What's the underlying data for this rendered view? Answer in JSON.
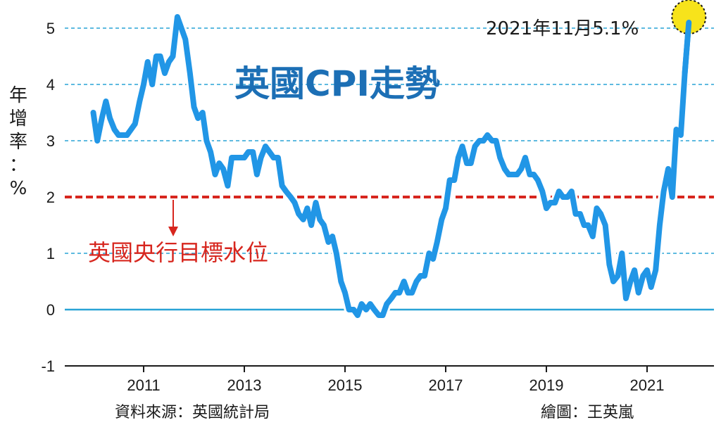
{
  "chart_data": {
    "type": "line",
    "title": "英國CPI走勢",
    "ylabel": [
      "年",
      "增",
      "率",
      "：",
      "%"
    ],
    "xlabel": "",
    "ylim": [
      -1,
      5
    ],
    "yticks": [
      "-1",
      "0",
      "1",
      "2",
      "3",
      "4",
      "5"
    ],
    "xticks": [
      {
        "label": "2011",
        "x": 2011
      },
      {
        "label": "2013",
        "x": 2013
      },
      {
        "label": "2015",
        "x": 2015
      },
      {
        "label": "2017",
        "x": 2017
      },
      {
        "label": "2019",
        "x": 2019
      },
      {
        "label": "2021",
        "x": 2021
      }
    ],
    "grid": "horizontal dashed",
    "series": [
      {
        "name": "",
        "color": "#2196e6",
        "points": [
          [
            2010.0,
            3.5
          ],
          [
            2010.08,
            3.0
          ],
          [
            2010.17,
            3.4
          ],
          [
            2010.25,
            3.7
          ],
          [
            2010.33,
            3.4
          ],
          [
            2010.42,
            3.2
          ],
          [
            2010.5,
            3.1
          ],
          [
            2010.58,
            3.1
          ],
          [
            2010.67,
            3.1
          ],
          [
            2010.75,
            3.2
          ],
          [
            2010.83,
            3.3
          ],
          [
            2010.92,
            3.7
          ],
          [
            2011.0,
            4.0
          ],
          [
            2011.08,
            4.4
          ],
          [
            2011.17,
            4.0
          ],
          [
            2011.25,
            4.5
          ],
          [
            2011.33,
            4.5
          ],
          [
            2011.42,
            4.2
          ],
          [
            2011.5,
            4.4
          ],
          [
            2011.58,
            4.5
          ],
          [
            2011.67,
            5.2
          ],
          [
            2011.75,
            5.0
          ],
          [
            2011.83,
            4.8
          ],
          [
            2011.92,
            4.2
          ],
          [
            2012.0,
            3.6
          ],
          [
            2012.08,
            3.4
          ],
          [
            2012.17,
            3.5
          ],
          [
            2012.25,
            3.0
          ],
          [
            2012.33,
            2.8
          ],
          [
            2012.42,
            2.4
          ],
          [
            2012.5,
            2.6
          ],
          [
            2012.58,
            2.5
          ],
          [
            2012.67,
            2.2
          ],
          [
            2012.75,
            2.7
          ],
          [
            2012.83,
            2.7
          ],
          [
            2012.92,
            2.7
          ],
          [
            2013.0,
            2.7
          ],
          [
            2013.08,
            2.8
          ],
          [
            2013.17,
            2.8
          ],
          [
            2013.25,
            2.4
          ],
          [
            2013.33,
            2.7
          ],
          [
            2013.42,
            2.9
          ],
          [
            2013.5,
            2.8
          ],
          [
            2013.58,
            2.7
          ],
          [
            2013.67,
            2.7
          ],
          [
            2013.75,
            2.2
          ],
          [
            2013.83,
            2.1
          ],
          [
            2013.92,
            2.0
          ],
          [
            2014.0,
            1.9
          ],
          [
            2014.08,
            1.7
          ],
          [
            2014.17,
            1.6
          ],
          [
            2014.25,
            1.8
          ],
          [
            2014.33,
            1.5
          ],
          [
            2014.42,
            1.9
          ],
          [
            2014.5,
            1.6
          ],
          [
            2014.58,
            1.5
          ],
          [
            2014.67,
            1.2
          ],
          [
            2014.75,
            1.3
          ],
          [
            2014.83,
            1.0
          ],
          [
            2014.92,
            0.5
          ],
          [
            2015.0,
            0.3
          ],
          [
            2015.08,
            0.0
          ],
          [
            2015.17,
            0.0
          ],
          [
            2015.25,
            -0.1
          ],
          [
            2015.33,
            0.1
          ],
          [
            2015.42,
            0.0
          ],
          [
            2015.5,
            0.1
          ],
          [
            2015.58,
            0.0
          ],
          [
            2015.67,
            -0.1
          ],
          [
            2015.75,
            -0.1
          ],
          [
            2015.83,
            0.1
          ],
          [
            2015.92,
            0.2
          ],
          [
            2016.0,
            0.3
          ],
          [
            2016.08,
            0.3
          ],
          [
            2016.17,
            0.5
          ],
          [
            2016.25,
            0.3
          ],
          [
            2016.33,
            0.3
          ],
          [
            2016.42,
            0.5
          ],
          [
            2016.5,
            0.6
          ],
          [
            2016.58,
            0.6
          ],
          [
            2016.67,
            1.0
          ],
          [
            2016.75,
            0.9
          ],
          [
            2016.83,
            1.2
          ],
          [
            2016.92,
            1.6
          ],
          [
            2017.0,
            1.8
          ],
          [
            2017.08,
            2.3
          ],
          [
            2017.17,
            2.3
          ],
          [
            2017.25,
            2.7
          ],
          [
            2017.33,
            2.9
          ],
          [
            2017.42,
            2.6
          ],
          [
            2017.5,
            2.6
          ],
          [
            2017.58,
            2.9
          ],
          [
            2017.67,
            3.0
          ],
          [
            2017.75,
            3.0
          ],
          [
            2017.83,
            3.1
          ],
          [
            2017.92,
            3.0
          ],
          [
            2018.0,
            3.0
          ],
          [
            2018.08,
            2.7
          ],
          [
            2018.17,
            2.5
          ],
          [
            2018.25,
            2.4
          ],
          [
            2018.33,
            2.4
          ],
          [
            2018.42,
            2.4
          ],
          [
            2018.5,
            2.5
          ],
          [
            2018.58,
            2.7
          ],
          [
            2018.67,
            2.4
          ],
          [
            2018.75,
            2.4
          ],
          [
            2018.83,
            2.3
          ],
          [
            2018.92,
            2.1
          ],
          [
            2019.0,
            1.8
          ],
          [
            2019.08,
            1.9
          ],
          [
            2019.17,
            1.9
          ],
          [
            2019.25,
            2.1
          ],
          [
            2019.33,
            2.0
          ],
          [
            2019.42,
            2.0
          ],
          [
            2019.5,
            2.1
          ],
          [
            2019.58,
            1.7
          ],
          [
            2019.67,
            1.7
          ],
          [
            2019.75,
            1.5
          ],
          [
            2019.83,
            1.5
          ],
          [
            2019.92,
            1.3
          ],
          [
            2020.0,
            1.8
          ],
          [
            2020.08,
            1.7
          ],
          [
            2020.17,
            1.5
          ],
          [
            2020.25,
            0.8
          ],
          [
            2020.33,
            0.5
          ],
          [
            2020.42,
            0.6
          ],
          [
            2020.5,
            1.0
          ],
          [
            2020.58,
            0.2
          ],
          [
            2020.67,
            0.5
          ],
          [
            2020.75,
            0.7
          ],
          [
            2020.83,
            0.3
          ],
          [
            2020.92,
            0.6
          ],
          [
            2021.0,
            0.7
          ],
          [
            2021.08,
            0.4
          ],
          [
            2021.17,
            0.7
          ],
          [
            2021.25,
            1.5
          ],
          [
            2021.33,
            2.1
          ],
          [
            2021.42,
            2.5
          ],
          [
            2021.5,
            2.0
          ],
          [
            2021.58,
            3.2
          ],
          [
            2021.67,
            3.1
          ],
          [
            2021.75,
            4.2
          ],
          [
            2021.83,
            5.1
          ]
        ]
      }
    ],
    "target": {
      "value": 2,
      "label": "英國央行目標水位",
      "color": "#d7261e"
    },
    "annotation": {
      "label": "2021年11月5.1%",
      "x": 2021.83,
      "y": 5.1
    },
    "line_color": "#2196e6",
    "gridline_color": "#29a3d6"
  },
  "footer": {
    "source": "資料來源：英國統計局",
    "credit": "繪圖：王英嵐"
  }
}
